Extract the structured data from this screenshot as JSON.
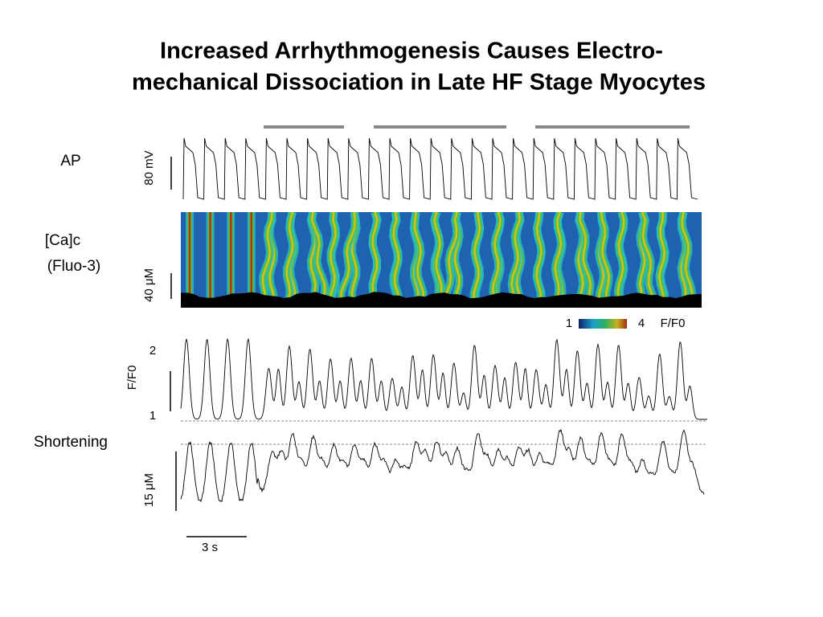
{
  "title": {
    "lines": [
      "Increased Arrhythmogenesis Causes Electro-",
      "mechanical Dissociation in Late HF Stage Myocytes"
    ]
  },
  "panels": [
    {
      "label": [
        "AP"
      ],
      "scale": "80 mV"
    },
    {
      "label": [
        "[Ca]c",
        "(Fluo-3)"
      ],
      "scale": "40 μM",
      "colorbar": {
        "min": "1",
        "max": "4",
        "unit": "F/F0"
      }
    },
    {
      "scale": "F/F0",
      "ticks": [
        "2",
        "1"
      ]
    },
    {
      "label": [
        "Shortening"
      ],
      "scale": "15 μM"
    }
  ],
  "time_scale": "3 s"
}
